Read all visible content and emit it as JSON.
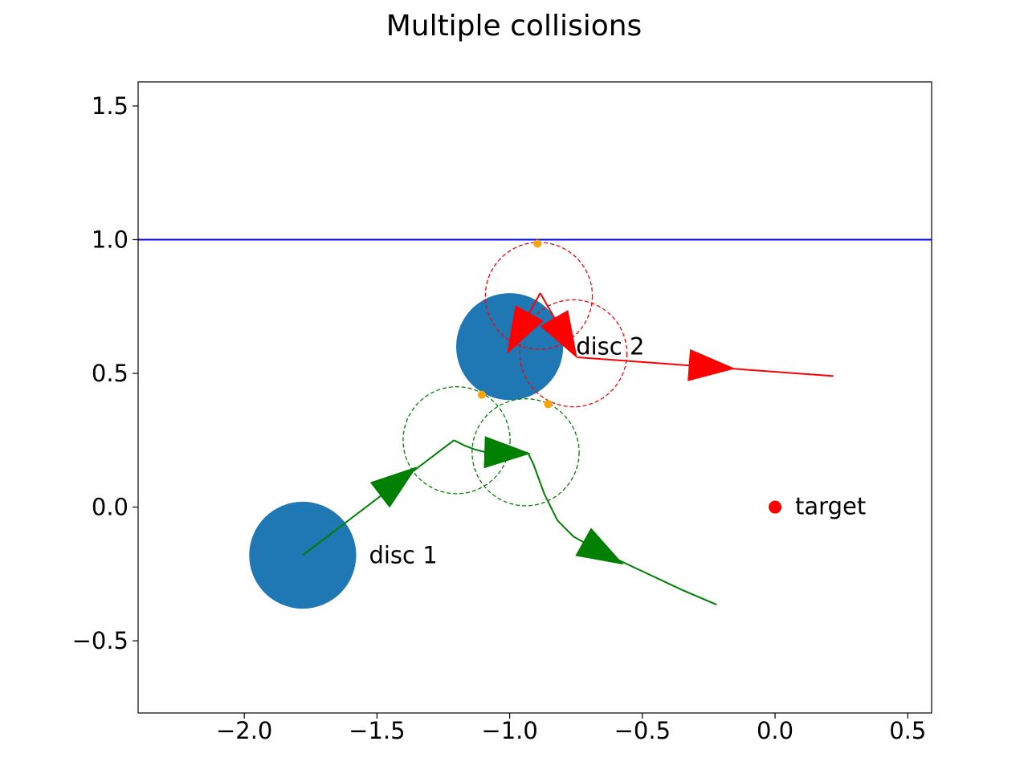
{
  "chart_data": {
    "type": "scatter",
    "title": "Multiple collisions",
    "xlabel": "",
    "ylabel": "",
    "xlim": [
      -2.4,
      0.59
    ],
    "ylim": [
      -0.77,
      1.59
    ],
    "x_ticks": [
      -2.0,
      -1.5,
      -1.0,
      -0.5,
      0.0,
      0.5
    ],
    "x_tick_labels": [
      "−2.0",
      "−1.5",
      "−1.0",
      "−0.5",
      "0.0",
      "0.5"
    ],
    "y_ticks": [
      -0.5,
      0.0,
      0.5,
      1.0,
      1.5
    ],
    "y_tick_labels": [
      "−0.5",
      "0.0",
      "0.5",
      "1.0",
      "1.5"
    ],
    "grid": false,
    "colors": {
      "disc": "#1f77b4",
      "path1": "#008000",
      "path2": "#ff0000",
      "wall": "#0000ff",
      "contact": "#ffa500",
      "target": "#ff0000"
    },
    "wall": {
      "y": 1.0
    },
    "discs": [
      {
        "label": "disc 1",
        "x": -1.78,
        "y": -0.18,
        "r": 0.2
      },
      {
        "label": "disc 2",
        "x": -1.0,
        "y": 0.6,
        "r": 0.2
      }
    ],
    "target": {
      "label": "target",
      "x": 0.0,
      "y": 0.0
    },
    "paths": [
      {
        "color": "#008000",
        "segments": [
          [
            [
              -1.78,
              -0.18
            ],
            [
              -1.21,
              0.25
            ]
          ],
          [
            [
              -1.21,
              0.25
            ],
            [
              -1.17,
              0.23
            ],
            [
              -1.13,
              0.215
            ],
            [
              -1.09,
              0.205
            ],
            [
              -1.05,
              0.201
            ],
            [
              -1.0,
              0.2
            ]
          ],
          [
            [
              -0.93,
              0.2
            ],
            [
              -0.91,
              0.16
            ],
            [
              -0.87,
              0.05
            ],
            [
              -0.82,
              -0.05
            ],
            [
              -0.76,
              -0.11
            ],
            [
              -0.65,
              -0.17
            ],
            [
              -0.5,
              -0.24
            ],
            [
              -0.35,
              -0.31
            ],
            [
              -0.22,
              -0.365
            ]
          ]
        ],
        "arrows": [
          {
            "x": -1.45,
            "y": 0.075,
            "dx": 0.1,
            "dy": 0.076
          },
          {
            "x": -1.02,
            "y": 0.203,
            "dx": 0.1,
            "dy": -0.003
          },
          {
            "x": -0.66,
            "y": -0.165,
            "dx": 0.09,
            "dy": -0.05
          }
        ]
      },
      {
        "color": "#ff0000",
        "segments": [
          [
            [
              -0.99,
              0.61
            ],
            [
              -0.885,
              0.8
            ]
          ],
          [
            [
              -0.885,
              0.8
            ],
            [
              -0.755,
              0.575
            ]
          ],
          [
            [
              -0.745,
              0.56
            ],
            [
              0.22,
              0.49
            ]
          ]
        ],
        "arrows": [
          {
            "x": -0.97,
            "y": 0.645,
            "dx": -0.04,
            "dy": -0.072
          },
          {
            "x": -0.785,
            "y": 0.625,
            "dx": 0.04,
            "dy": -0.069
          },
          {
            "x": -0.25,
            "y": 0.525,
            "dx": 0.1,
            "dy": -0.0073
          }
        ]
      }
    ],
    "collision_circles": [
      {
        "x": -1.2,
        "y": 0.25,
        "r": 0.2,
        "color": "#008000"
      },
      {
        "x": -0.94,
        "y": 0.205,
        "r": 0.2,
        "color": "#008000"
      },
      {
        "x": -0.89,
        "y": 0.79,
        "r": 0.2,
        "color": "#ff0000"
      },
      {
        "x": -0.76,
        "y": 0.575,
        "r": 0.2,
        "color": "#ff0000"
      }
    ],
    "contact_points": [
      {
        "x": -0.895,
        "y": 0.985
      },
      {
        "x": -1.105,
        "y": 0.42
      },
      {
        "x": -0.855,
        "y": 0.385
      }
    ]
  }
}
